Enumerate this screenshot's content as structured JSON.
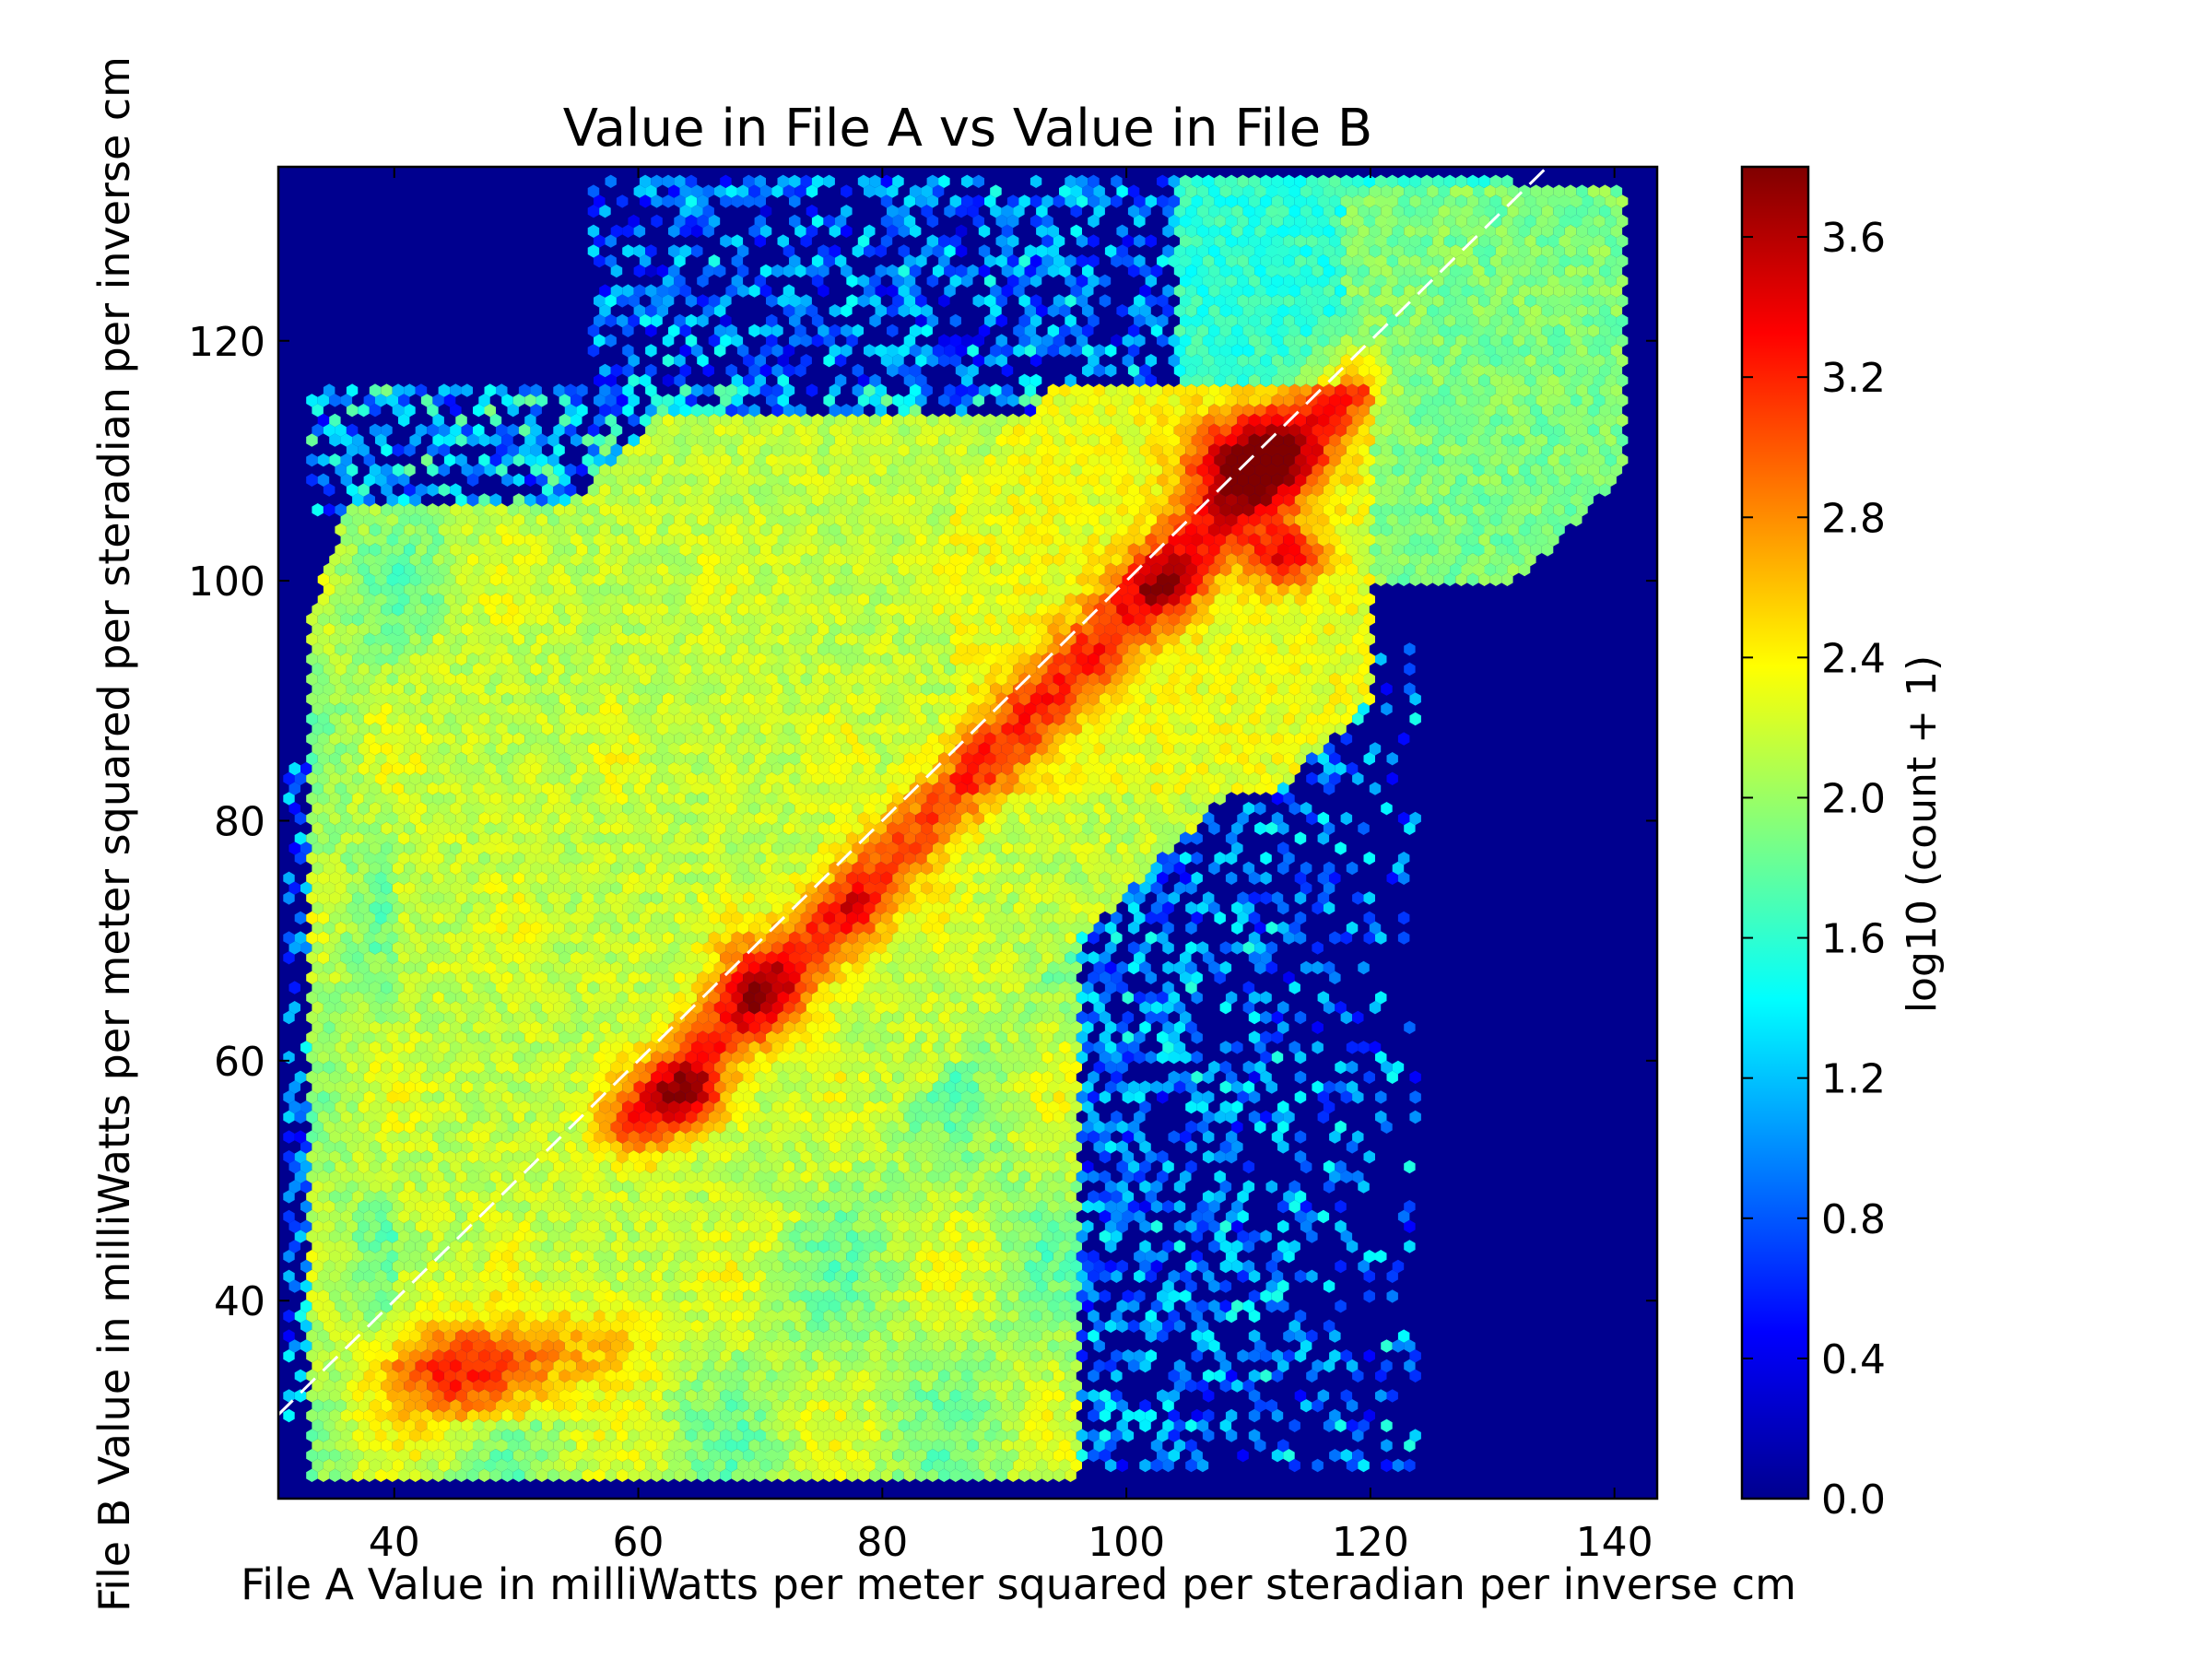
{
  "chart_data": {
    "type": "heatmap",
    "subtype": "hexbin",
    "title": "Value in File A vs Value in File B",
    "xlabel": "File A Value in milliWatts per meter squared per steradian per inverse cm",
    "ylabel": "File B Value in milliWatts per meter squared per steradian per inverse cm",
    "xlim": [
      30.5,
      143.5
    ],
    "ylim": [
      23.5,
      134.5
    ],
    "xticks": [
      40,
      60,
      80,
      100,
      120,
      140
    ],
    "yticks": [
      40,
      60,
      80,
      100,
      120
    ],
    "colormap": "jet",
    "background_color": "#00008f",
    "colorbar": {
      "label": "log10 (count + 1)",
      "range": [
        0.0,
        3.8
      ],
      "ticks": [
        "0.0",
        "0.4",
        "0.8",
        "1.2",
        "1.6",
        "2.0",
        "2.4",
        "2.8",
        "3.2",
        "3.6"
      ]
    },
    "reference_line": {
      "style": "dashed",
      "color": "#ffffff",
      "points": [
        [
          30.5,
          30.5
        ],
        [
          134.5,
          134.5
        ]
      ]
    },
    "density_regions": [
      {
        "region": "main body",
        "approx_x": [
          35,
          95
        ],
        "approx_y": [
          25,
          105
        ],
        "log_count": 2.2
      },
      {
        "region": "lower-left peak",
        "approx_x": [
          38,
          55
        ],
        "approx_y": [
          28,
          42
        ],
        "log_count": 3.2
      },
      {
        "region": "diagonal ridge",
        "approx_x": [
          60,
          118
        ],
        "approx_y": [
          55,
          118
        ],
        "log_count": 3.0
      },
      {
        "region": "upper-right peak",
        "approx_x": [
          105,
          115
        ],
        "approx_y": [
          105,
          115
        ],
        "log_count": 3.7
      },
      {
        "region": "secondary peak",
        "approx_x": [
          108,
          116
        ],
        "approx_y": [
          99,
          104
        ],
        "log_count": 3.4
      },
      {
        "region": "sparse right fringe",
        "approx_x": [
          95,
          125
        ],
        "approx_y": [
          28,
          90
        ],
        "log_count": 0.9
      },
      {
        "region": "sparse top strip",
        "approx_x": [
          55,
          120
        ],
        "approx_y": [
          118,
          134
        ],
        "log_count": 1.0
      }
    ]
  }
}
